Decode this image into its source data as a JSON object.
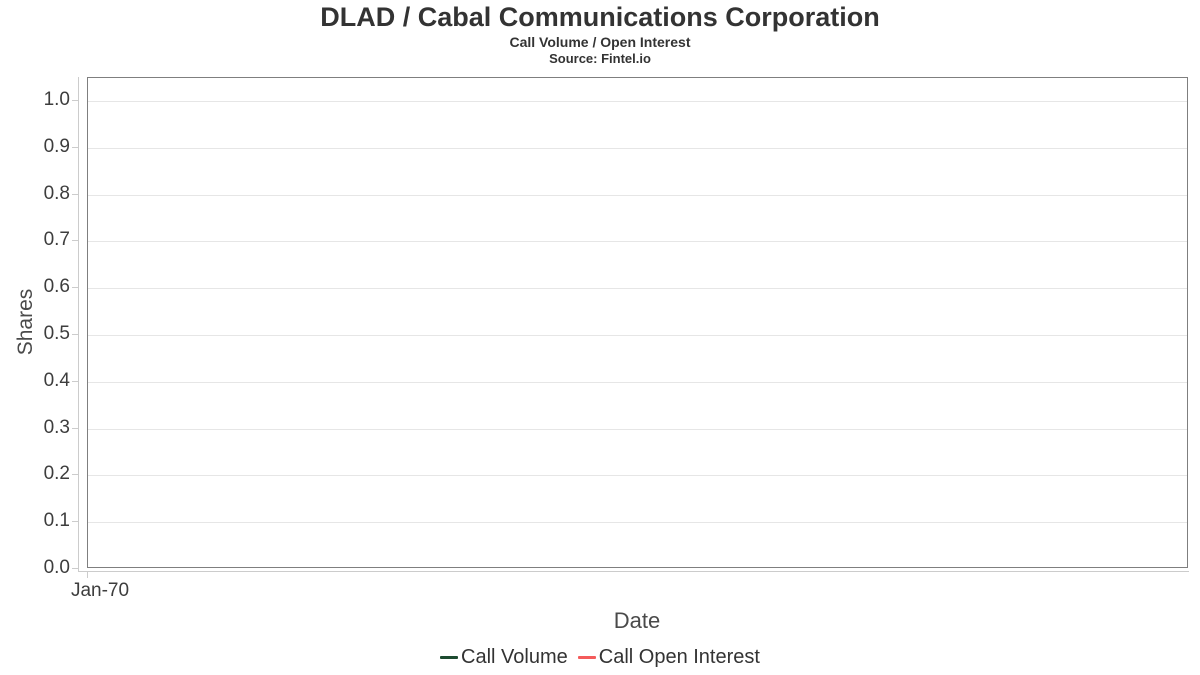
{
  "chart_data": {
    "type": "line",
    "title": "DLAD / Cabal Communications Corporation",
    "subtitle": "Call Volume / Open Interest",
    "source": "Source: Fintel.io",
    "xlabel": "Date",
    "ylabel": "Shares",
    "ylim": [
      0.0,
      1.0
    ],
    "ytick_step": 0.1,
    "yticks": [
      "1.0",
      "0.9",
      "0.8",
      "0.7",
      "0.6",
      "0.5",
      "0.4",
      "0.3",
      "0.2",
      "0.1",
      "0.0"
    ],
    "xticks": [
      "Jan-70"
    ],
    "grid": true,
    "legend_position": "bottom-center",
    "series": [
      {
        "name": "Call Volume",
        "color": "#1d4b30",
        "x": [],
        "values": []
      },
      {
        "name": "Call Open Interest",
        "color": "#f45b5b",
        "x": [],
        "values": []
      }
    ]
  },
  "colors": {
    "background": "#ffffff",
    "plot_border": "#7f7f7f",
    "gridline": "#e6e6e6",
    "axis_line": "#cccccc",
    "title_text": "#333333",
    "tick_text": "#3d3d3d",
    "axis_title_text": "#4a4a4a",
    "series_call_volume": "#1d4b30",
    "series_call_open_interest": "#f45b5b"
  }
}
